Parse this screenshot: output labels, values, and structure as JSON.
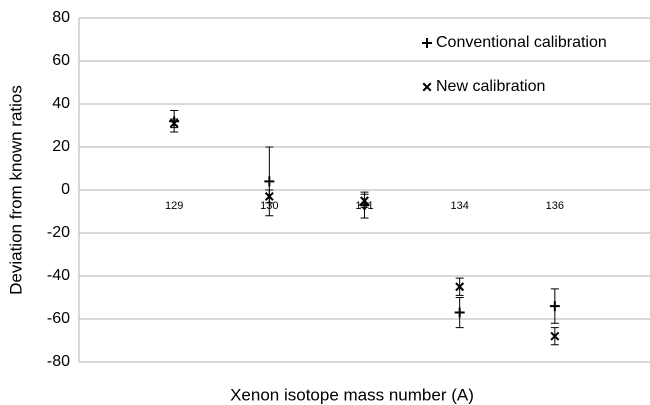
{
  "chart_data": {
    "type": "errorbar",
    "x_label": "Xenon isotope mass number (A)",
    "y_label": "Deviation from known ratios",
    "categories": [
      "129",
      "130",
      "131",
      "134",
      "136"
    ],
    "series": [
      {
        "name": "Conventional calibration",
        "marker": "plus",
        "color": "#000000",
        "values": [
          32,
          4,
          -7,
          -57,
          -54
        ],
        "errors": [
          5,
          16,
          6,
          7,
          8
        ]
      },
      {
        "name": "New calibration",
        "marker": "cross",
        "color": "#000000",
        "values": [
          31,
          -3,
          -5,
          -45,
          -68
        ],
        "errors": [
          2,
          3,
          3,
          4,
          4
        ]
      }
    ],
    "ylim": [
      -80,
      80
    ],
    "yticks": [
      -80,
      -60,
      -40,
      -20,
      0,
      20,
      40,
      60,
      80
    ],
    "grid": true,
    "legend": "top-right"
  }
}
